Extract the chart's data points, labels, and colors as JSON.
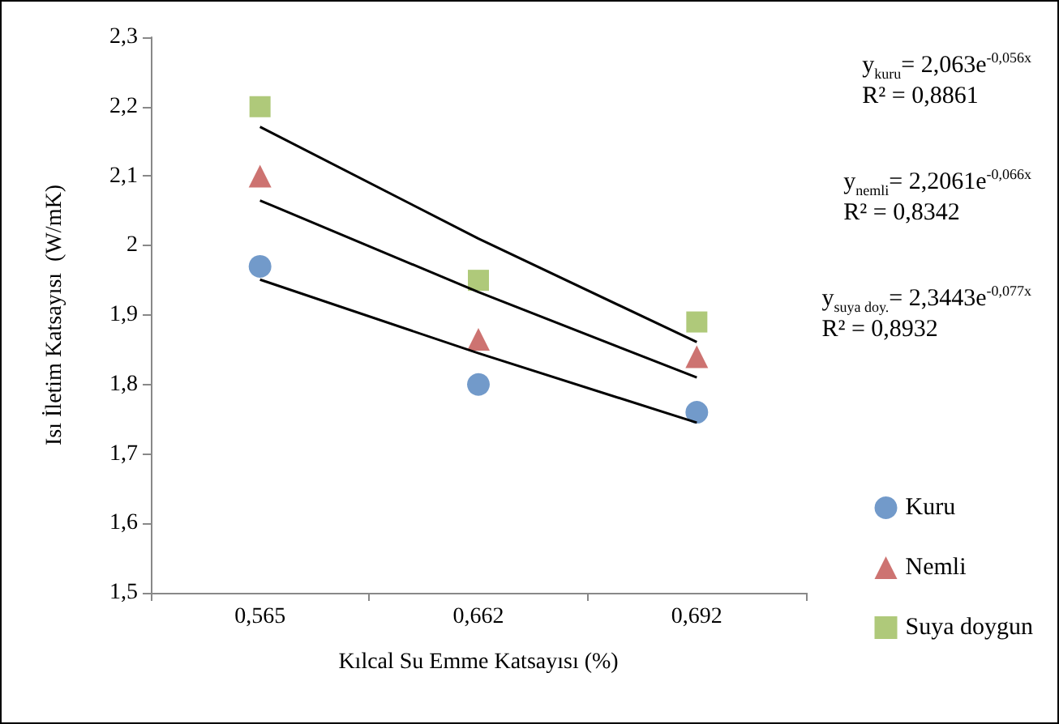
{
  "chart_data": {
    "type": "scatter",
    "xlabel": "Kılcal Su Emme Katsayısı (%)",
    "ylabel": "Isı İletim Katsayısı  (W/mK)",
    "categories": [
      "0,565",
      "0,662",
      "0,692"
    ],
    "ylim": [
      1.5,
      2.3
    ],
    "yticks": [
      {
        "value": 1.5,
        "label": "1,5"
      },
      {
        "value": 1.6,
        "label": "1,6"
      },
      {
        "value": 1.7,
        "label": "1,7"
      },
      {
        "value": 1.8,
        "label": "1,8"
      },
      {
        "value": 1.9,
        "label": "1,9"
      },
      2,
      {
        "value": 2.1,
        "label": "2,1"
      },
      {
        "value": 2.2,
        "label": "2,2"
      },
      {
        "value": 2.3,
        "label": "2,3"
      }
    ],
    "grid": false,
    "legend": "right",
    "series": [
      {
        "name": "Kuru",
        "marker": "circle",
        "color": "#4f81bd",
        "values": [
          1.97,
          1.8,
          1.76
        ]
      },
      {
        "name": "Nemli",
        "marker": "triangle",
        "color": "#c0504d",
        "values": [
          2.1,
          1.865,
          1.84
        ]
      },
      {
        "name": "Suya doygun",
        "marker": "square",
        "color": "#9bbb59",
        "values": [
          2.2,
          1.95,
          1.89
        ]
      },
      {
        "type": "line",
        "marker": "none",
        "color": "#000000",
        "values": [
          1.951,
          1.845,
          1.745
        ]
      },
      {
        "type": "line",
        "marker": "none",
        "color": "#000000",
        "values": [
          2.065,
          1.933,
          1.81
        ]
      },
      {
        "type": "line",
        "marker": "none",
        "color": "#000000",
        "values": [
          2.171,
          2.01,
          1.861
        ]
      }
    ],
    "annotations": [
      "y$_{kuru}$= 2,063e$^{-0,056x}$\nR² = 0,8861",
      "y$_{nemli}$= 2,2061e$^{-0,066x}$\nR² = 0,8342",
      "y$_{suya doy.}$= 2,3443e$^{-0,077x}$\nR² = 0,8932"
    ]
  }
}
